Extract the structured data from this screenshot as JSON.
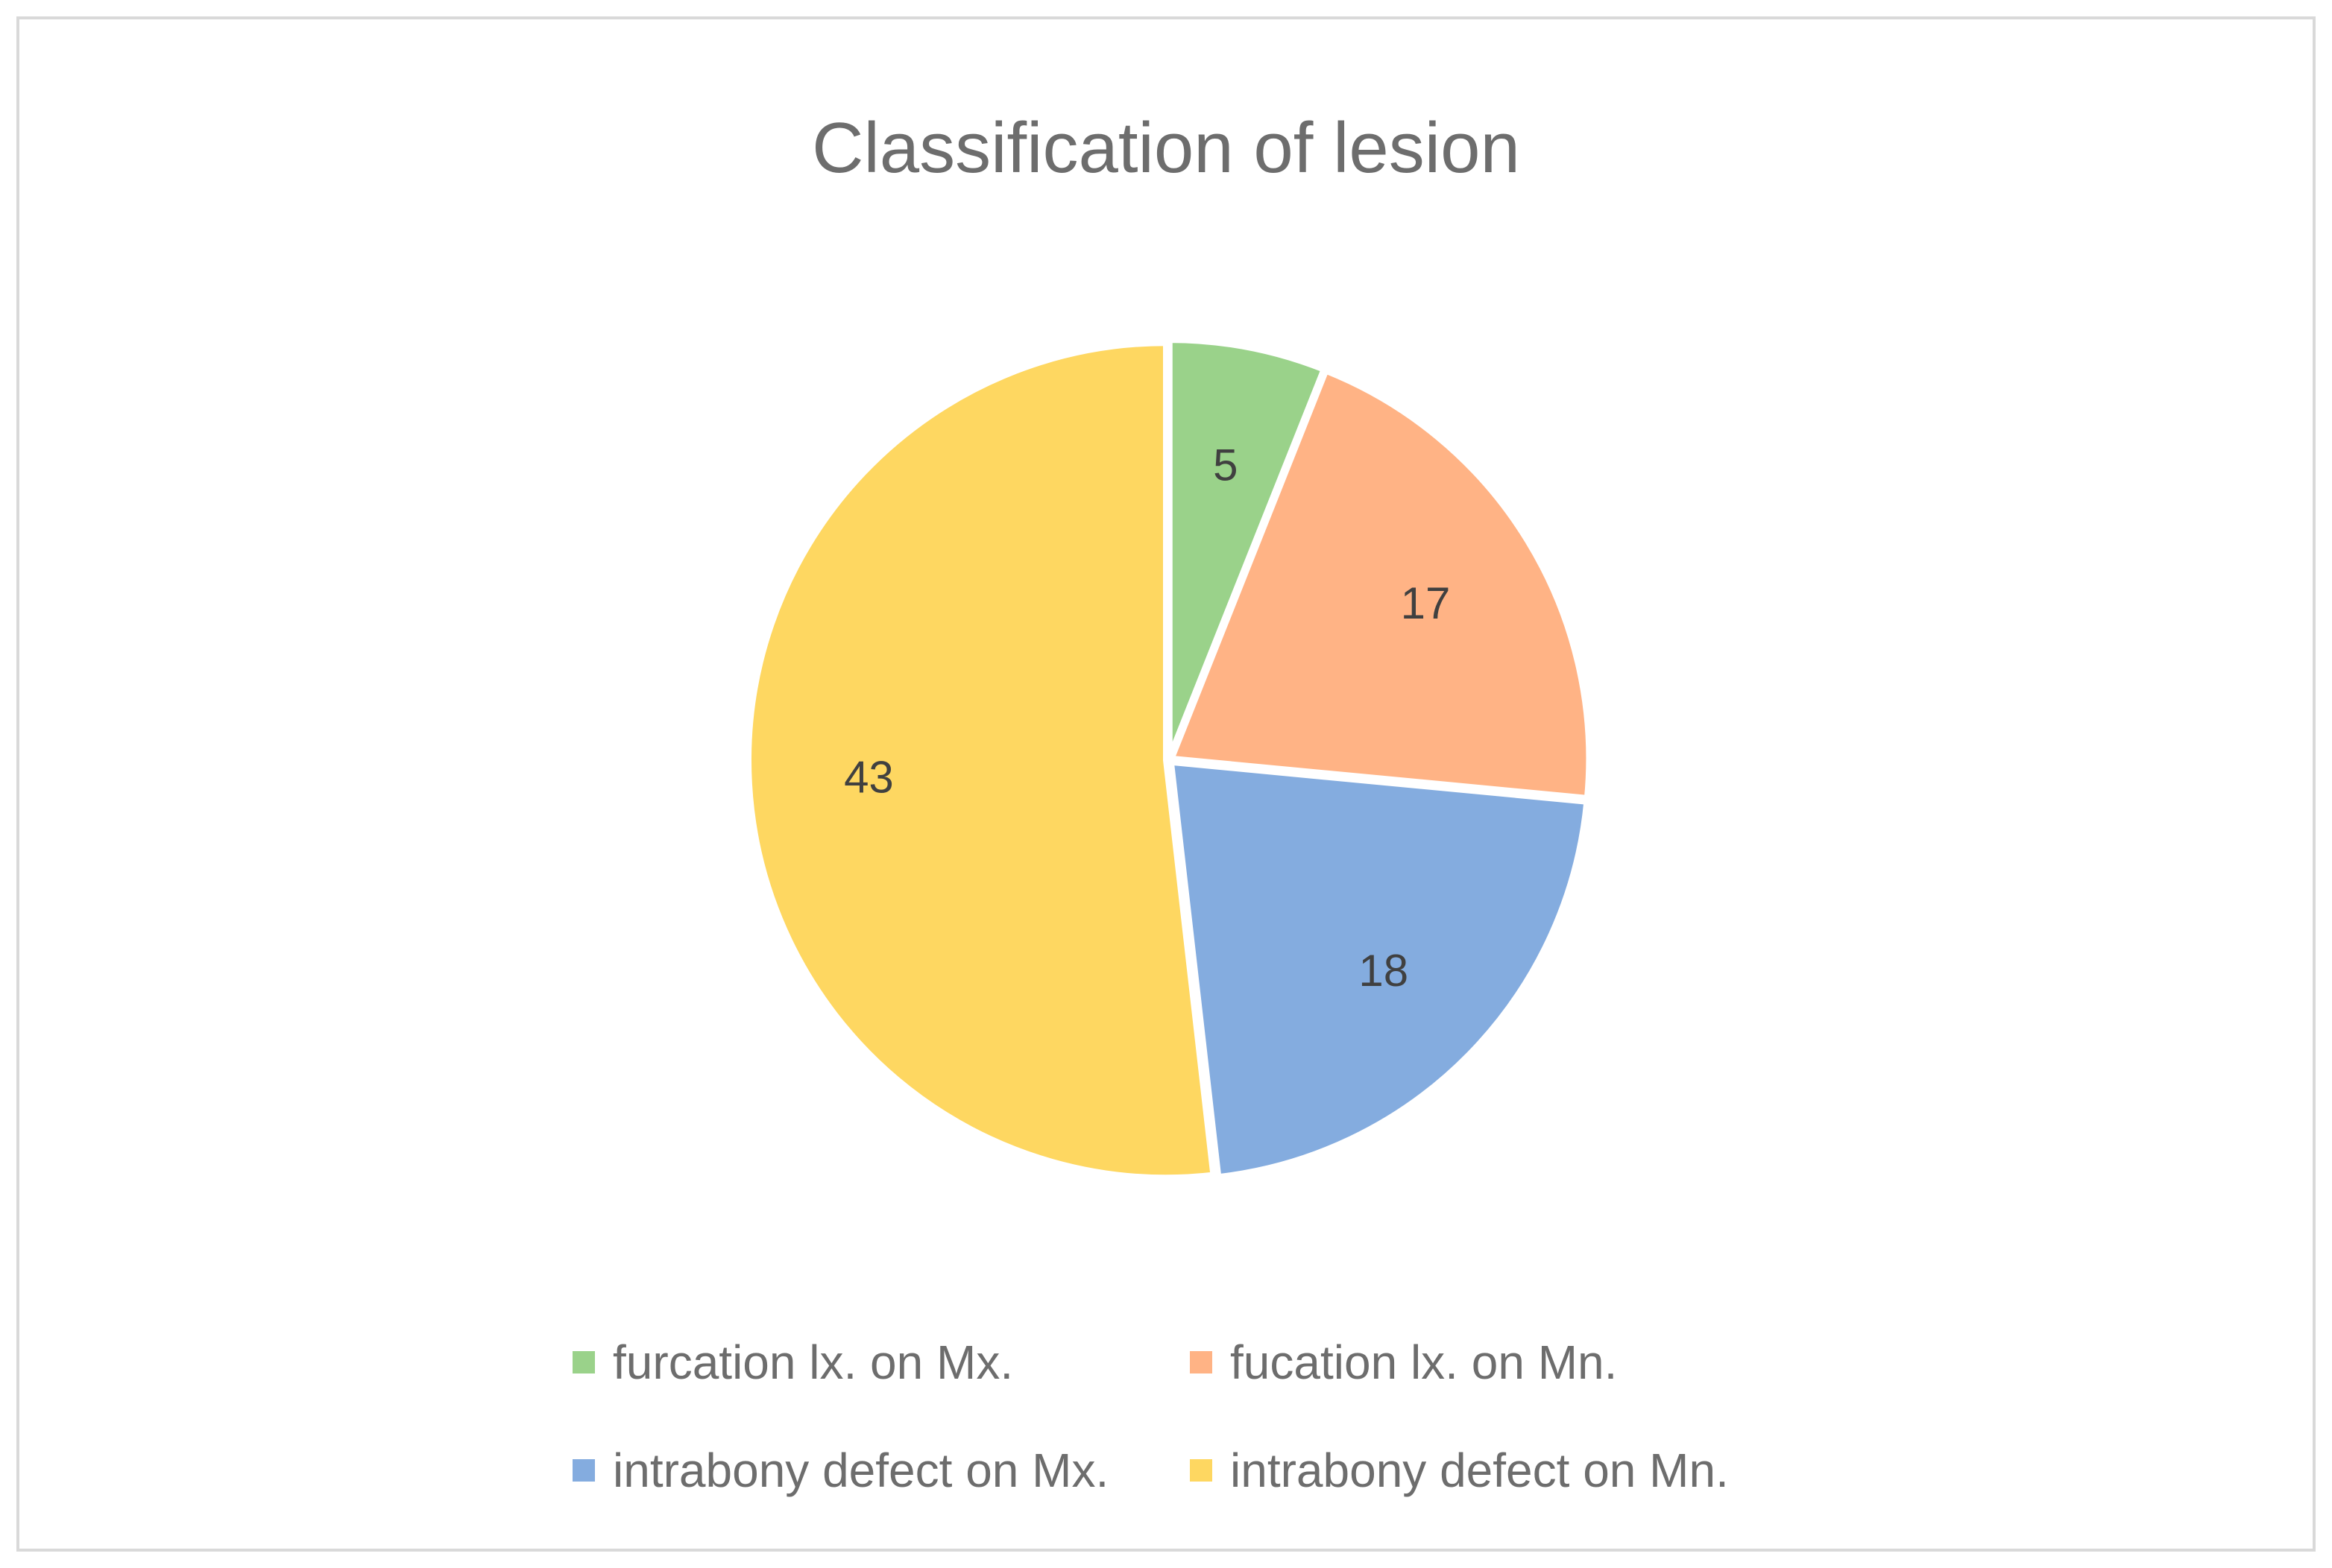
{
  "chart_data": {
    "type": "pie",
    "title": "Classification of lesion",
    "categories": [
      "furcation lx. on Mx.",
      "fucation lx. on Mn.",
      "intrabony defect on Mx.",
      "intrabony defect on Mn."
    ],
    "values": [
      5,
      17,
      18,
      43
    ],
    "data_labels": [
      "5",
      "17",
      "18",
      "43"
    ],
    "colors": [
      "#9ad28a",
      "#ffb385",
      "#84acdf",
      "#fed761"
    ],
    "legend_position": "bottom",
    "start_angle_deg": 0,
    "direction": "clockwise"
  }
}
